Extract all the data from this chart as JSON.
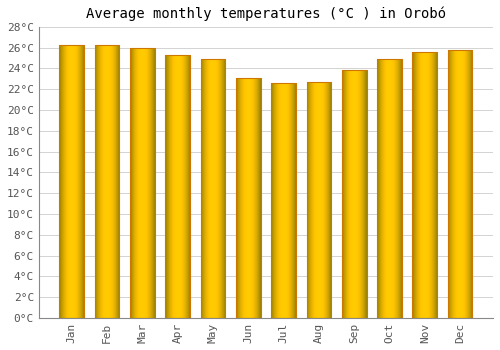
{
  "title": "Average monthly temperatures (°C ) in Orobó",
  "months": [
    "Jan",
    "Feb",
    "Mar",
    "Apr",
    "May",
    "Jun",
    "Jul",
    "Aug",
    "Sep",
    "Oct",
    "Nov",
    "Dec"
  ],
  "values": [
    26.2,
    26.2,
    26.0,
    25.3,
    24.9,
    23.1,
    22.6,
    22.7,
    23.8,
    24.9,
    25.6,
    25.8
  ],
  "bar_color_main": "#FFA500",
  "bar_color_light": "#FFD966",
  "bar_edge_color": "#CC7700",
  "ylim": [
    0,
    28
  ],
  "ytick_step": 2,
  "background_color": "#FFFFFF",
  "grid_color": "#CCCCCC",
  "title_fontsize": 10,
  "tick_fontsize": 8,
  "font_family": "monospace"
}
